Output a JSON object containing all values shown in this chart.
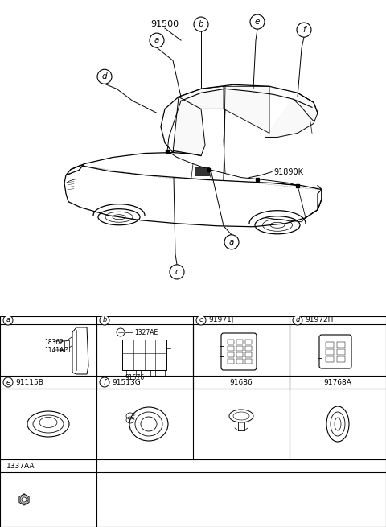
{
  "bg_color": "#ffffff",
  "fig_width": 4.8,
  "fig_height": 6.55,
  "dpi": 100,
  "car_label": "91500",
  "callout_91890K": "91890K",
  "grid_rows": [
    [
      "a",
      "",
      "b",
      "",
      "c",
      "91971J",
      "d",
      "91972H"
    ],
    [
      "e",
      "91115B",
      "f",
      "91513G",
      "",
      "91686",
      "",
      "91768A"
    ],
    [
      "1337AA",
      "",
      "",
      "",
      "",
      "",
      "",
      ""
    ]
  ],
  "cell_parts_a": [
    "18362",
    "1141AC"
  ],
  "cell_parts_b": [
    "1327AE",
    "91576"
  ]
}
